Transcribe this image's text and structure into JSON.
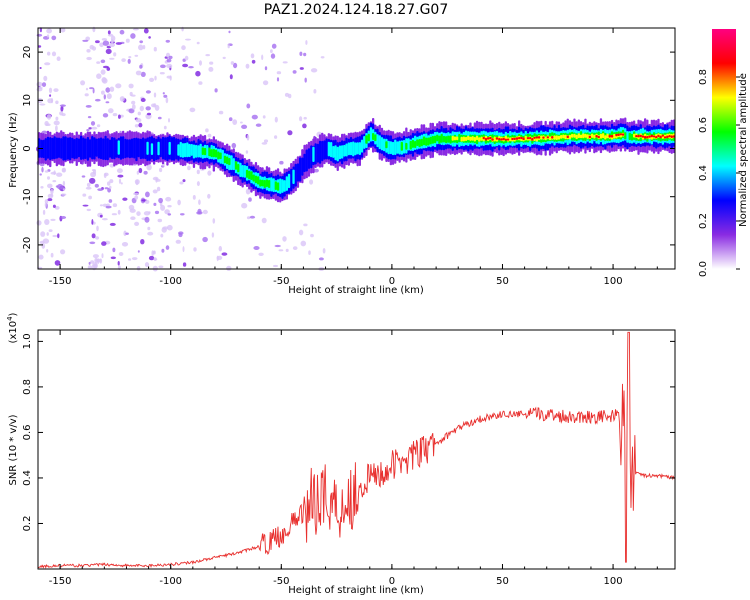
{
  "title": "PAZ1.2024.124.18.27.G07",
  "chart_data": [
    {
      "type": "heatmap",
      "xlabel": "Height of straight line (km)",
      "ylabel": "Frequency (Hz)",
      "xlim": [
        -160,
        128
      ],
      "ylim": [
        -25,
        25
      ],
      "x_ticks": [
        -150,
        -100,
        -50,
        0,
        50,
        100
      ],
      "y_ticks": [
        -20,
        -10,
        0,
        10,
        20
      ],
      "colorbar": {
        "label": "Normalized spectral amplitude",
        "range": [
          0,
          1
        ],
        "ticks": [
          "0.0",
          "0.2",
          "0.4",
          "0.6",
          "0.8"
        ],
        "colormap": [
          "#ffffff",
          "#8a2be2",
          "#0000ff",
          "#00ffff",
          "#00ff00",
          "#ffff00",
          "#ff0000",
          "#ff0080"
        ]
      },
      "ridge": {
        "x": [
          -160,
          -140,
          -120,
          -100,
          -90,
          -80,
          -70,
          -60,
          -50,
          -45,
          -40,
          -35,
          -30,
          -25,
          -20,
          -15,
          -10,
          -5,
          0,
          10,
          20,
          40,
          60,
          80,
          100,
          104,
          106,
          110,
          128
        ],
        "y": [
          0,
          0,
          0,
          0,
          -0.5,
          -1,
          -4,
          -7,
          -8,
          -6,
          -3,
          -1,
          0,
          -1,
          0,
          0,
          3,
          1,
          0,
          1,
          2,
          2,
          2,
          2.5,
          2.5,
          3,
          2.5,
          2.5,
          2.5
        ],
        "amplitude": [
          0.25,
          0.3,
          0.3,
          0.35,
          0.5,
          0.6,
          0.55,
          0.6,
          0.5,
          0.35,
          0.3,
          0.3,
          0.35,
          0.45,
          0.5,
          0.5,
          0.55,
          0.5,
          0.55,
          0.6,
          0.65,
          0.85,
          0.9,
          0.8,
          0.85,
          0.95,
          0.4,
          0.9,
          0.95
        ]
      }
    },
    {
      "type": "line",
      "xlabel": "Height of straight line (km)",
      "ylabel": "SNR (10 * v/v)",
      "scale_note": "(x10",
      "scale_exp": "4",
      "xlim": [
        -160,
        128
      ],
      "ylim": [
        0,
        1.05
      ],
      "x_ticks": [
        -150,
        -100,
        -50,
        0,
        50,
        100
      ],
      "y_ticks": [
        "0.2",
        "0.4",
        "0.6",
        "0.8",
        "1.0"
      ],
      "series": [
        {
          "color": "#e8302e",
          "x": [
            -160,
            -150,
            -140,
            -130,
            -120,
            -110,
            -100,
            -90,
            -80,
            -70,
            -60,
            -55,
            -50,
            -45,
            -40,
            -35,
            -32,
            -30,
            -25,
            -20,
            -15,
            -10,
            -5,
            0,
            5,
            10,
            15,
            20,
            30,
            40,
            50,
            60,
            70,
            80,
            90,
            100,
            104,
            106,
            107,
            108,
            110,
            115,
            120,
            128
          ],
          "values": [
            0.01,
            0.015,
            0.015,
            0.02,
            0.015,
            0.015,
            0.02,
            0.03,
            0.05,
            0.07,
            0.1,
            0.12,
            0.15,
            0.2,
            0.25,
            0.3,
            0.35,
            0.32,
            0.27,
            0.3,
            0.36,
            0.4,
            0.42,
            0.45,
            0.48,
            0.5,
            0.52,
            0.55,
            0.62,
            0.66,
            0.68,
            0.68,
            0.68,
            0.67,
            0.67,
            0.67,
            0.68,
            0.55,
            0.95,
            0.45,
            0.42,
            0.41,
            0.41,
            0.4
          ]
        }
      ]
    }
  ]
}
